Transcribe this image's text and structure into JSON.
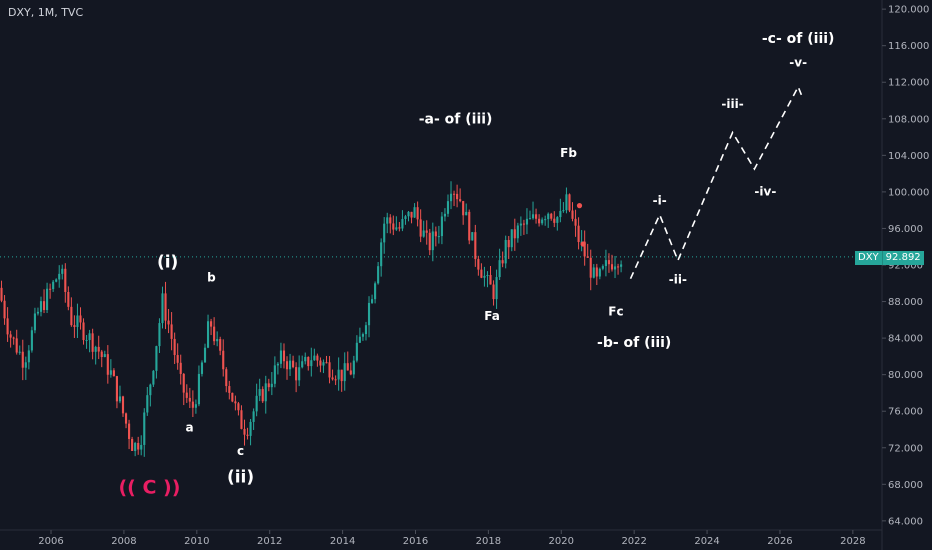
{
  "header": {
    "title": "DXY, 1M, TVC"
  },
  "colors": {
    "bull": "#26a69a",
    "bear": "#ef5350",
    "text": "#ffffff",
    "accent": "#e91e63",
    "axis": "#b2b5be"
  },
  "price_badge": {
    "symbol": "DXY",
    "value": "92.892"
  },
  "chart_data": {
    "type": "candlestick",
    "y_ticks": [
      "64.000",
      "68.000",
      "72.000",
      "76.000",
      "80.000",
      "84.000",
      "88.000",
      "92.000",
      "96.000",
      "100.000",
      "104.000",
      "108.000",
      "112.000",
      "116.000",
      "120.000"
    ],
    "x_ticks": [
      "2006",
      "2008",
      "2010",
      "2012",
      "2014",
      "2016",
      "2018",
      "2020",
      "2022",
      "2024",
      "2026",
      "2028"
    ],
    "ylim": [
      63,
      121
    ],
    "xlim": [
      2004.6,
      2028.8
    ],
    "current_price": 92.892,
    "price_path": [
      [
        2004.6,
        89.5
      ],
      [
        2004.9,
        84.5
      ],
      [
        2005.3,
        81.5
      ],
      [
        2005.7,
        87
      ],
      [
        2006.0,
        89
      ],
      [
        2006.3,
        91.5
      ],
      [
        2006.6,
        86
      ],
      [
        2006.9,
        85
      ],
      [
        2007.3,
        83
      ],
      [
        2007.7,
        80
      ],
      [
        2008.0,
        76
      ],
      [
        2008.3,
        72
      ],
      [
        2008.5,
        73
      ],
      [
        2008.8,
        80
      ],
      [
        2009.1,
        88
      ],
      [
        2009.3,
        85
      ],
      [
        2009.6,
        79
      ],
      [
        2009.9,
        76
      ],
      [
        2010.1,
        79
      ],
      [
        2010.4,
        86
      ],
      [
        2010.6,
        83
      ],
      [
        2010.9,
        79
      ],
      [
        2011.2,
        75
      ],
      [
        2011.4,
        74
      ],
      [
        2011.7,
        77
      ],
      [
        2012.0,
        79
      ],
      [
        2012.4,
        82
      ],
      [
        2012.8,
        80
      ],
      [
        2013.2,
        82
      ],
      [
        2013.6,
        81
      ],
      [
        2014.0,
        80
      ],
      [
        2014.3,
        80.5
      ],
      [
        2014.6,
        85
      ],
      [
        2014.9,
        90
      ],
      [
        2015.2,
        97
      ],
      [
        2015.6,
        96
      ],
      [
        2016.0,
        98
      ],
      [
        2016.4,
        94
      ],
      [
        2016.7,
        96
      ],
      [
        2017.0,
        101
      ],
      [
        2017.3,
        99
      ],
      [
        2017.7,
        93
      ],
      [
        2018.0,
        90
      ],
      [
        2018.2,
        89
      ],
      [
        2018.5,
        94
      ],
      [
        2018.9,
        96
      ],
      [
        2019.3,
        97
      ],
      [
        2019.7,
        98
      ],
      [
        2020.0,
        97
      ],
      [
        2020.2,
        99
      ],
      [
        2020.4,
        96
      ],
      [
        2020.7,
        93
      ],
      [
        2021.0,
        90
      ],
      [
        2021.3,
        92
      ],
      [
        2021.6,
        92.9
      ]
    ],
    "projection": [
      [
        2021.9,
        90.5
      ],
      [
        2022.7,
        97.5
      ],
      [
        2023.2,
        92.5
      ],
      [
        2024.7,
        106.5
      ],
      [
        2025.3,
        102.5
      ],
      [
        2026.5,
        111.5
      ],
      [
        2026.6,
        110.5
      ]
    ],
    "red_markers": [
      [
        2020.5,
        98.5
      ],
      [
        2020.6,
        94.3
      ]
    ],
    "annotations": [
      {
        "text": "(( C ))",
        "x": 2008.7,
        "y": 67,
        "color": "accent",
        "size": "big"
      },
      {
        "text": "(i)",
        "x": 2009.2,
        "y": 91.7,
        "size": "large"
      },
      {
        "text": "b",
        "x": 2010.4,
        "y": 90.2,
        "size": "small"
      },
      {
        "text": "a",
        "x": 2009.8,
        "y": 73.8,
        "size": "small"
      },
      {
        "text": "c",
        "x": 2011.2,
        "y": 71.2,
        "size": "small"
      },
      {
        "text": "(ii)",
        "x": 2011.2,
        "y": 68.2,
        "size": "large"
      },
      {
        "text": "-a- of (iii)",
        "x": 2017.1,
        "y": 107.5,
        "size": "medium"
      },
      {
        "text": "Fb",
        "x": 2020.2,
        "y": 103.8,
        "size": "small"
      },
      {
        "text": "Fa",
        "x": 2018.1,
        "y": 86.0,
        "size": "small"
      },
      {
        "text": "Fc",
        "x": 2021.5,
        "y": 86.5,
        "size": "small"
      },
      {
        "text": "-b- of (iii)",
        "x": 2022.0,
        "y": 83.0,
        "size": "medium"
      },
      {
        "text": "-i-",
        "x": 2022.7,
        "y": 98.6,
        "size": "small"
      },
      {
        "text": "-ii-",
        "x": 2023.2,
        "y": 90.0,
        "size": "small"
      },
      {
        "text": "-iii-",
        "x": 2024.7,
        "y": 109.2,
        "size": "small"
      },
      {
        "text": "-iv-",
        "x": 2025.6,
        "y": 99.6,
        "size": "small"
      },
      {
        "text": "-v-",
        "x": 2026.5,
        "y": 113.7,
        "size": "small"
      },
      {
        "text": "-c- of (iii)",
        "x": 2026.5,
        "y": 116.3,
        "size": "medium"
      }
    ]
  }
}
